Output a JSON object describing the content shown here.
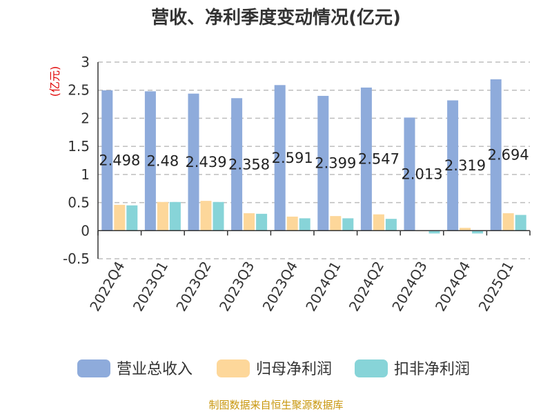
{
  "chart_data": {
    "type": "bar",
    "title": "营收、净利季度变动情况(亿元)",
    "unit_label": "(亿元)",
    "categories": [
      "2022Q4",
      "2023Q1",
      "2023Q2",
      "2023Q3",
      "2023Q4",
      "2024Q1",
      "2024Q2",
      "2024Q3",
      "2024Q4",
      "2025Q1"
    ],
    "series": [
      {
        "name": "营业总收入",
        "color": "#8eabdb",
        "values": [
          2.498,
          2.48,
          2.439,
          2.358,
          2.591,
          2.399,
          2.547,
          2.013,
          2.319,
          2.694
        ]
      },
      {
        "name": "归母净利润",
        "color": "#fdd79a",
        "values": [
          0.46,
          0.51,
          0.53,
          0.31,
          0.25,
          0.26,
          0.29,
          -0.01,
          0.05,
          0.31
        ]
      },
      {
        "name": "扣非净利润",
        "color": "#87d4d8",
        "values": [
          0.45,
          0.51,
          0.51,
          0.3,
          0.22,
          0.22,
          0.21,
          -0.05,
          -0.05,
          0.28
        ]
      }
    ],
    "data_labels": [
      "2.498",
      "2.48",
      "2.439",
      "2.358",
      "2.591",
      "2.399",
      "2.547",
      "2.013",
      "2.319",
      "2.694"
    ],
    "y_ticks": [
      "3",
      "2.5",
      "2",
      "1.5",
      "1",
      "0.5",
      "0",
      "-0.5"
    ],
    "ylim": [
      -0.5,
      3
    ],
    "grid": true,
    "legend_position": "bottom"
  },
  "source_text": "制图数据来自恒生聚源数据库"
}
